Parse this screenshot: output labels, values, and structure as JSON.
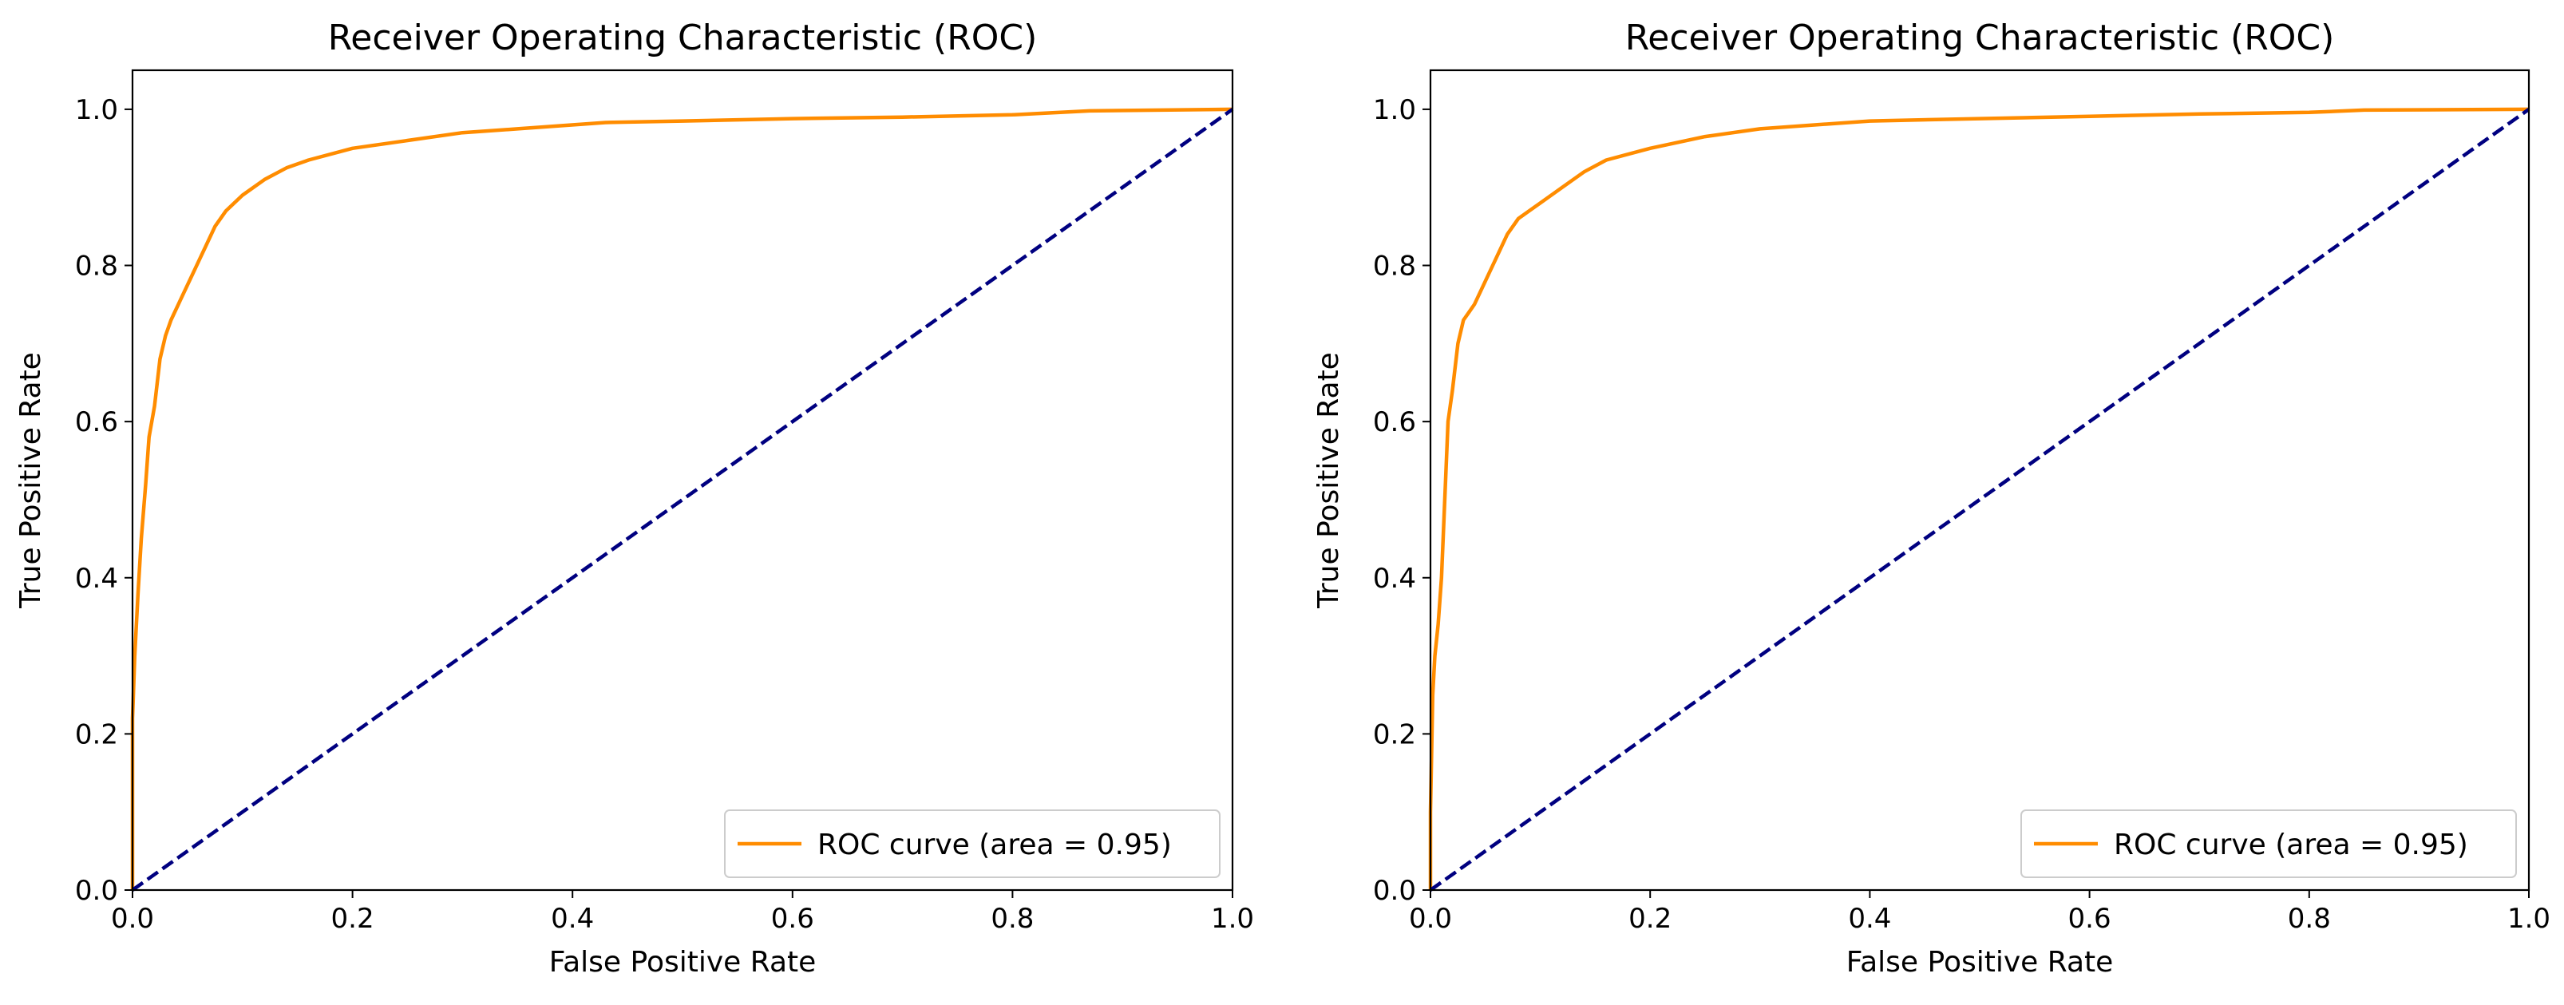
{
  "chart_data": [
    {
      "type": "line",
      "title": "Receiver Operating Characteristic (ROC)",
      "xlabel": "False Positive Rate",
      "ylabel": "True Positive Rate",
      "xlim": [
        0.0,
        1.0
      ],
      "ylim": [
        0.0,
        1.05
      ],
      "xticks": [
        "0.0",
        "0.2",
        "0.4",
        "0.6",
        "0.8",
        "1.0"
      ],
      "yticks": [
        "0.0",
        "0.2",
        "0.4",
        "0.6",
        "0.8",
        "1.0"
      ],
      "grid": false,
      "legend_position": "lower-right",
      "series": [
        {
          "name": "ROC curve (area = 0.95)",
          "color": "#ff8c00",
          "style": "solid",
          "x": [
            0.0,
            0.0,
            0.002,
            0.005,
            0.008,
            0.012,
            0.015,
            0.02,
            0.025,
            0.03,
            0.035,
            0.045,
            0.055,
            0.065,
            0.075,
            0.085,
            0.1,
            0.12,
            0.14,
            0.16,
            0.2,
            0.25,
            0.3,
            0.35,
            0.43,
            0.5,
            0.6,
            0.7,
            0.8,
            0.87,
            1.0
          ],
          "y": [
            0.0,
            0.22,
            0.3,
            0.38,
            0.45,
            0.52,
            0.58,
            0.62,
            0.68,
            0.71,
            0.73,
            0.76,
            0.79,
            0.82,
            0.85,
            0.87,
            0.89,
            0.91,
            0.925,
            0.935,
            0.95,
            0.96,
            0.97,
            0.975,
            0.983,
            0.985,
            0.988,
            0.99,
            0.993,
            0.998,
            1.0
          ]
        },
        {
          "name": "",
          "color": "#000080",
          "style": "dashed",
          "x": [
            0.0,
            1.0
          ],
          "y": [
            0.0,
            1.0
          ]
        }
      ]
    },
    {
      "type": "line",
      "title": "Receiver Operating Characteristic (ROC)",
      "xlabel": "False Positive Rate",
      "ylabel": "True Positive Rate",
      "xlim": [
        0.0,
        1.0
      ],
      "ylim": [
        0.0,
        1.05
      ],
      "xticks": [
        "0.0",
        "0.2",
        "0.4",
        "0.6",
        "0.8",
        "1.0"
      ],
      "yticks": [
        "0.0",
        "0.2",
        "0.4",
        "0.6",
        "0.8",
        "1.0"
      ],
      "grid": false,
      "legend_position": "lower-right",
      "series": [
        {
          "name": "ROC curve (area = 0.95)",
          "color": "#ff8c00",
          "style": "solid",
          "x": [
            0.0,
            0.0,
            0.002,
            0.004,
            0.007,
            0.01,
            0.013,
            0.016,
            0.02,
            0.025,
            0.03,
            0.035,
            0.04,
            0.05,
            0.06,
            0.07,
            0.08,
            0.09,
            0.1,
            0.12,
            0.14,
            0.16,
            0.2,
            0.25,
            0.3,
            0.4,
            0.5,
            0.6,
            0.7,
            0.8,
            0.85,
            1.0
          ],
          "y": [
            0.0,
            0.1,
            0.25,
            0.3,
            0.34,
            0.4,
            0.5,
            0.6,
            0.64,
            0.7,
            0.73,
            0.74,
            0.75,
            0.78,
            0.81,
            0.84,
            0.86,
            0.87,
            0.88,
            0.9,
            0.92,
            0.935,
            0.95,
            0.965,
            0.975,
            0.985,
            0.988,
            0.991,
            0.994,
            0.996,
            0.999,
            1.0
          ]
        },
        {
          "name": "",
          "color": "#000080",
          "style": "dashed",
          "x": [
            0.0,
            1.0
          ],
          "y": [
            0.0,
            1.0
          ]
        }
      ]
    }
  ]
}
